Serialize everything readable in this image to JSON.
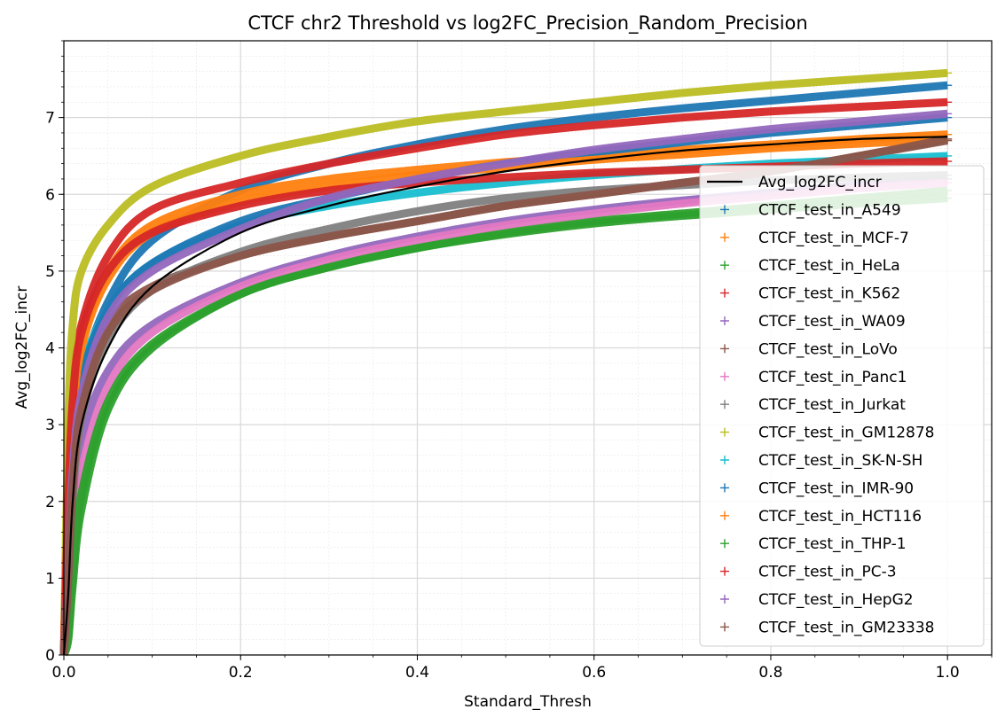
{
  "chart_data": {
    "type": "scatter",
    "title": "CTCF chr2 Threshold vs log2FC_Precision_Random_Precision",
    "xlabel": "Standard_Thresh",
    "ylabel": "Avg_log2FC_incr",
    "xlim": [
      0,
      1.05
    ],
    "ylim": [
      0,
      8
    ],
    "x_ticks": [
      0.0,
      0.2,
      0.4,
      0.6,
      0.8,
      1.0
    ],
    "x_tick_labels": [
      "0.0",
      "0.2",
      "0.4",
      "0.6",
      "0.8",
      "1.0"
    ],
    "y_ticks": [
      0,
      1,
      2,
      3,
      4,
      5,
      6,
      7
    ],
    "y_tick_labels": [
      "0",
      "1",
      "2",
      "3",
      "4",
      "5",
      "6",
      "7"
    ],
    "grid": true,
    "legend_position": "right",
    "x": [
      0.005,
      0.01,
      0.02,
      0.05,
      0.1,
      0.2,
      0.3,
      0.4,
      0.5,
      0.6,
      0.7,
      0.8,
      0.9,
      1.0
    ],
    "average": {
      "name": "Avg_log2FC_incr",
      "color": "#000000",
      "values": [
        0.8,
        2.0,
        3.0,
        4.0,
        4.8,
        5.5,
        5.85,
        6.1,
        6.3,
        6.45,
        6.57,
        6.65,
        6.72,
        6.75
      ]
    },
    "series": [
      {
        "name": "CTCF_test_in_A549",
        "color": "#1f77b4",
        "values": [
          1.2,
          2.6,
          3.6,
          4.6,
          5.4,
          6.05,
          6.4,
          6.65,
          6.85,
          7.0,
          7.12,
          7.22,
          7.32,
          7.42
        ]
      },
      {
        "name": "CTCF_test_in_MCF-7",
        "color": "#ff7f0e",
        "values": [
          1.6,
          3.1,
          4.1,
          5.0,
          5.6,
          6.0,
          6.2,
          6.32,
          6.42,
          6.5,
          6.58,
          6.65,
          6.72,
          6.78
        ]
      },
      {
        "name": "CTCF_test_in_HeLa",
        "color": "#2ca02c",
        "values": [
          0.2,
          0.9,
          1.9,
          3.2,
          4.0,
          4.7,
          5.05,
          5.3,
          5.5,
          5.65,
          5.75,
          5.85,
          5.95,
          6.05
        ]
      },
      {
        "name": "CTCF_test_in_K562",
        "color": "#d62728",
        "values": [
          2.2,
          3.4,
          4.3,
          5.2,
          5.8,
          6.15,
          6.4,
          6.6,
          6.78,
          6.9,
          7.0,
          7.08,
          7.14,
          7.2
        ]
      },
      {
        "name": "CTCF_test_in_WA09",
        "color": "#9467bd",
        "values": [
          0.6,
          1.7,
          2.8,
          3.7,
          4.3,
          4.85,
          5.2,
          5.45,
          5.65,
          5.8,
          5.92,
          6.02,
          6.12,
          6.2
        ]
      },
      {
        "name": "CTCF_test_in_LoVo",
        "color": "#8c564b",
        "values": [
          1.0,
          2.3,
          3.3,
          4.3,
          4.8,
          5.2,
          5.45,
          5.65,
          5.85,
          6.0,
          6.15,
          6.3,
          6.5,
          6.7
        ]
      },
      {
        "name": "CTCF_test_in_Panc1",
        "color": "#e377c2",
        "values": [
          0.4,
          1.3,
          2.4,
          3.5,
          4.2,
          4.8,
          5.15,
          5.4,
          5.6,
          5.75,
          5.88,
          5.98,
          6.08,
          6.15
        ]
      },
      {
        "name": "CTCF_test_in_Jurkat",
        "color": "#7f7f7f",
        "values": [
          0.8,
          2.0,
          3.1,
          4.1,
          4.75,
          5.25,
          5.55,
          5.78,
          5.95,
          6.05,
          6.12,
          6.18,
          6.22,
          6.25
        ]
      },
      {
        "name": "CTCF_test_in_GM12878",
        "color": "#bcbd22",
        "values": [
          3.0,
          4.3,
          5.0,
          5.6,
          6.1,
          6.5,
          6.75,
          6.95,
          7.08,
          7.2,
          7.32,
          7.42,
          7.5,
          7.58
        ]
      },
      {
        "name": "CTCF_test_in_SK-N-SH",
        "color": "#17becf",
        "values": [
          1.4,
          2.8,
          3.7,
          4.5,
          5.1,
          5.6,
          5.85,
          6.02,
          6.15,
          6.25,
          6.33,
          6.4,
          6.45,
          6.5
        ]
      },
      {
        "name": "CTCF_test_in_IMR-90",
        "color": "#1f77b4",
        "values": [
          1.3,
          2.6,
          3.6,
          4.5,
          5.1,
          5.65,
          5.95,
          6.2,
          6.4,
          6.55,
          6.68,
          6.8,
          6.9,
          7.0
        ]
      },
      {
        "name": "CTCF_test_in_HCT116",
        "color": "#ff7f0e",
        "values": [
          1.5,
          3.0,
          4.0,
          4.9,
          5.5,
          5.9,
          6.1,
          6.25,
          6.35,
          6.45,
          6.52,
          6.6,
          6.66,
          6.72
        ]
      },
      {
        "name": "CTCF_test_in_THP-1",
        "color": "#2ca02c",
        "values": [
          0.3,
          1.1,
          2.1,
          3.3,
          4.05,
          4.7,
          5.05,
          5.3,
          5.48,
          5.62,
          5.72,
          5.8,
          5.88,
          5.95
        ]
      },
      {
        "name": "CTCF_test_in_PC-3",
        "color": "#d62728",
        "values": [
          2.0,
          3.3,
          4.2,
          5.0,
          5.5,
          5.85,
          6.05,
          6.15,
          6.22,
          6.28,
          6.32,
          6.36,
          6.4,
          6.43
        ]
      },
      {
        "name": "CTCF_test_in_HepG2",
        "color": "#9467bd",
        "values": [
          1.1,
          2.4,
          3.4,
          4.4,
          5.0,
          5.55,
          5.95,
          6.2,
          6.4,
          6.58,
          6.72,
          6.85,
          6.95,
          7.05
        ]
      },
      {
        "name": "CTCF_test_in_GM23338",
        "color": "#8c564b",
        "values": [
          1.0,
          2.2,
          3.2,
          4.2,
          4.75,
          5.2,
          5.45,
          5.65,
          5.85,
          6.0,
          6.15,
          6.3,
          6.5,
          6.72
        ]
      }
    ]
  }
}
